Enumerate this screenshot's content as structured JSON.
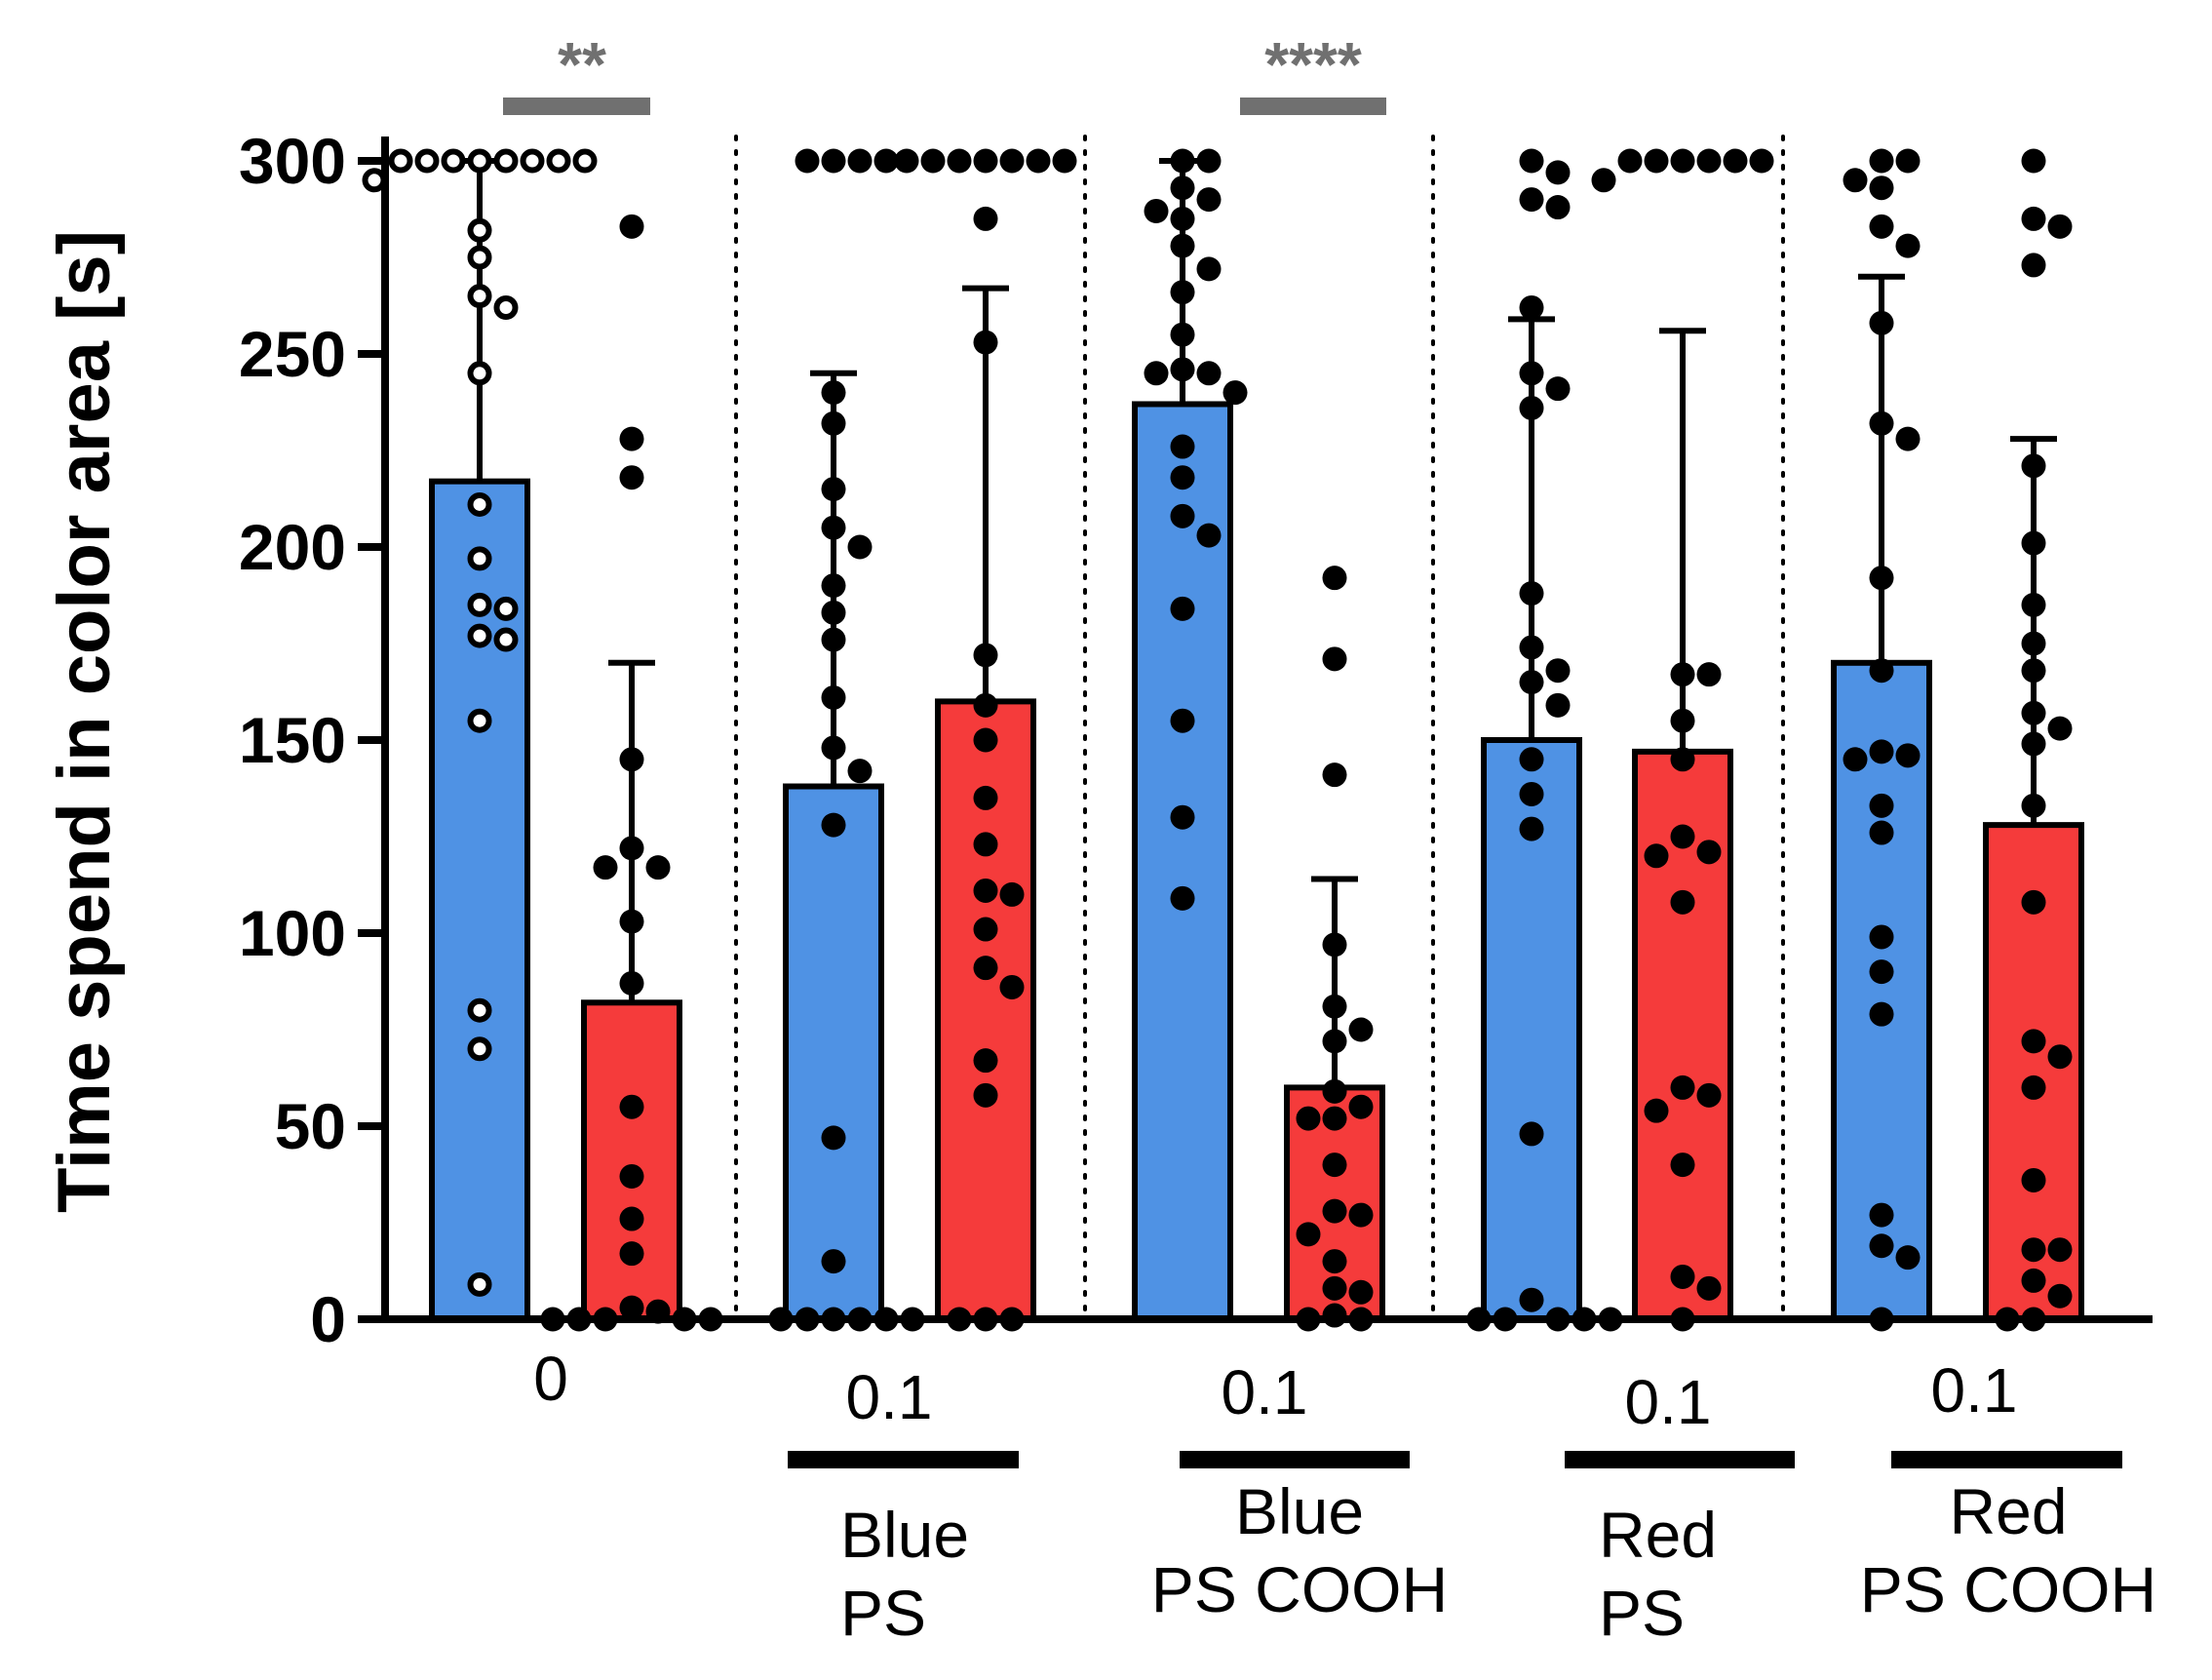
{
  "chart_data": {
    "type": "bar",
    "ylabel": "Time spend in color area [s]",
    "ylim": [
      0,
      300
    ],
    "yticks": [
      "0",
      "50",
      "100",
      "150",
      "200",
      "250",
      "300"
    ],
    "grid": false,
    "colors": {
      "blue": "#4f92e4",
      "red": "#f53b3b",
      "significance": "#707070"
    },
    "groups": [
      {
        "concentration": "0",
        "label_lines": [],
        "significance": "**",
        "bars": [
          {
            "color": "blue",
            "mean": 217,
            "sd_upper": 300,
            "marker": "open",
            "points": [
              300,
              300,
              300,
              300,
              300,
              300,
              300,
              300,
              295,
              282,
              275,
              265,
              262,
              245,
              211,
              197,
              185,
              184,
              177,
              176,
              155,
              80,
              70,
              9
            ]
          },
          {
            "color": "red",
            "mean": 82,
            "sd_upper": 170,
            "marker": "filled",
            "points": [
              283,
              228,
              218,
              145,
              122,
              117,
              117,
              103,
              87,
              55,
              37,
              26,
              17,
              3,
              2,
              0,
              0,
              0,
              0,
              0
            ]
          }
        ]
      },
      {
        "concentration": "0.1",
        "label_lines": [
          "Blue",
          "PS"
        ],
        "significance": "",
        "bars": [
          {
            "color": "blue",
            "mean": 138,
            "sd_upper": 245,
            "marker": "filled",
            "points": [
              300,
              300,
              300,
              300,
              240,
              232,
              215,
              205,
              200,
              190,
              183,
              176,
              161,
              148,
              142,
              128,
              47,
              15,
              0,
              0,
              0,
              0,
              0,
              0
            ]
          },
          {
            "color": "red",
            "mean": 160,
            "sd_upper": 267,
            "marker": "filled",
            "points": [
              300,
              300,
              300,
              300,
              300,
              300,
              300,
              285,
              253,
              172,
              159,
              150,
              135,
              123,
              111,
              110,
              101,
              91,
              86,
              67,
              58,
              0,
              0,
              0
            ]
          }
        ]
      },
      {
        "concentration": "0.1",
        "label_lines": [
          "Blue",
          "PS COOH"
        ],
        "significance": "****",
        "bars": [
          {
            "color": "blue",
            "mean": 237,
            "sd_upper": 300,
            "marker": "filled",
            "points": [
              300,
              300,
              293,
              290,
              287,
              285,
              278,
              272,
              266,
              255,
              246,
              245,
              245,
              240,
              226,
              218,
              208,
              203,
              184,
              155,
              130,
              109
            ]
          },
          {
            "color": "red",
            "mean": 60,
            "sd_upper": 114,
            "marker": "filled",
            "points": [
              192,
              171,
              141,
              97,
              81,
              75,
              72,
              59,
              55,
              52,
              52,
              40,
              28,
              27,
              22,
              15,
              8,
              7,
              1,
              0,
              0
            ]
          }
        ]
      },
      {
        "concentration": "0.1",
        "label_lines": [
          "Red",
          "PS"
        ],
        "significance": "",
        "bars": [
          {
            "color": "blue",
            "mean": 150,
            "sd_upper": 259,
            "marker": "filled",
            "points": [
              300,
              297,
              290,
              288,
              262,
              245,
              241,
              236,
              188,
              174,
              168,
              165,
              159,
              145,
              136,
              127,
              48,
              5,
              0,
              0,
              0,
              0,
              0
            ]
          },
          {
            "color": "red",
            "mean": 147,
            "sd_upper": 256,
            "marker": "filled",
            "points": [
              300,
              300,
              300,
              300,
              300,
              300,
              295,
              167,
              167,
              155,
              145,
              125,
              121,
              120,
              108,
              60,
              58,
              54,
              40,
              11,
              8,
              0
            ]
          }
        ]
      },
      {
        "concentration": "0.1",
        "label_lines": [
          "Red",
          "PS COOH"
        ],
        "significance": "",
        "bars": [
          {
            "color": "blue",
            "mean": 170,
            "sd_upper": 270,
            "marker": "filled",
            "points": [
              300,
              300,
              295,
              293,
              283,
              278,
              258,
              232,
              228,
              192,
              168,
              147,
              146,
              145,
              133,
              126,
              99,
              90,
              79,
              27,
              19,
              16,
              0
            ]
          },
          {
            "color": "red",
            "mean": 128,
            "sd_upper": 228,
            "marker": "filled",
            "points": [
              300,
              285,
              283,
              273,
              221,
              201,
              185,
              175,
              168,
              157,
              153,
              149,
              133,
              108,
              72,
              68,
              60,
              36,
              18,
              18,
              10,
              6,
              0,
              0
            ]
          }
        ]
      }
    ]
  }
}
